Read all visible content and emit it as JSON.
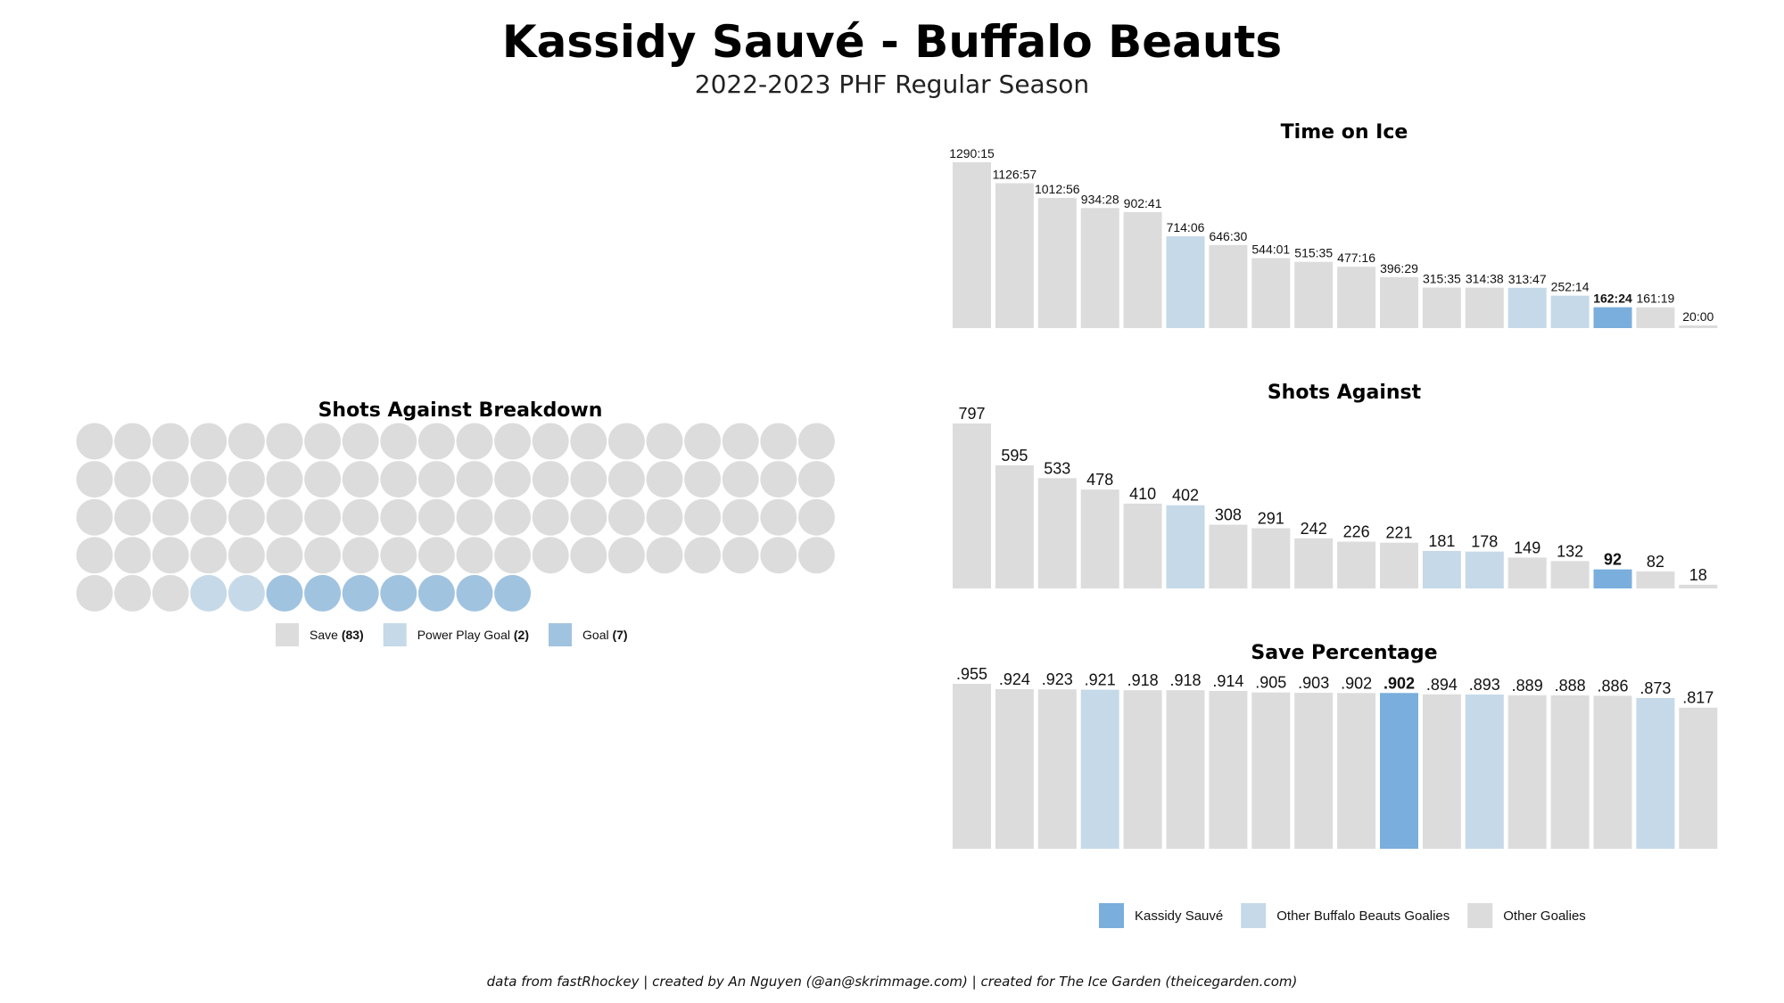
{
  "header": {
    "title": "Kassidy Sauvé - Buffalo Beauts",
    "subtitle": "2022-2023 PHF Regular Season"
  },
  "footer": {
    "text": "data from fastRhockey | created by An Nguyen (@an@skrimmage.com) | created for The Ice Garden (theicegarden.com)"
  },
  "colors": {
    "highlight": "#7aaedc",
    "team": "#c6d9e8",
    "other": "#dcdcdc",
    "goal": "#a0c3e0",
    "pp_goal": "#c6d9e8",
    "save": "#dcdcdc"
  },
  "chart_data": [
    {
      "type": "waffle",
      "title": "Shots Against Breakdown",
      "columns": 20,
      "categories": [
        {
          "key": "save",
          "label": "Save",
          "count": "83",
          "value": 83
        },
        {
          "key": "pp_goal",
          "label": "Power Play  Goal",
          "count": "2",
          "value": 2
        },
        {
          "key": "goal",
          "label": "Goal",
          "count": "7",
          "value": 7
        }
      ]
    },
    {
      "type": "bar",
      "title": "Time on Ice",
      "categories": [
        {
          "label": "1290:15",
          "value": 1290.25,
          "group": "other"
        },
        {
          "label": "1126:57",
          "value": 1126.95,
          "group": "other"
        },
        {
          "label": "1012:56",
          "value": 1012.93,
          "group": "other"
        },
        {
          "label": "934:28",
          "value": 934.47,
          "group": "other"
        },
        {
          "label": "902:41",
          "value": 902.68,
          "group": "other"
        },
        {
          "label": "714:06",
          "value": 714.1,
          "group": "team"
        },
        {
          "label": "646:30",
          "value": 646.5,
          "group": "other"
        },
        {
          "label": "544:01",
          "value": 544.02,
          "group": "other"
        },
        {
          "label": "515:35",
          "value": 515.58,
          "group": "other"
        },
        {
          "label": "477:16",
          "value": 477.27,
          "group": "other"
        },
        {
          "label": "396:29",
          "value": 396.48,
          "group": "other"
        },
        {
          "label": "315:35",
          "value": 315.58,
          "group": "other"
        },
        {
          "label": "314:38",
          "value": 314.63,
          "group": "other"
        },
        {
          "label": "313:47",
          "value": 313.78,
          "group": "team"
        },
        {
          "label": "252:14",
          "value": 252.23,
          "group": "team"
        },
        {
          "label": "162:24",
          "value": 162.4,
          "group": "highlight"
        },
        {
          "label": "161:19",
          "value": 161.32,
          "group": "other"
        },
        {
          "label": "20:00",
          "value": 20.0,
          "group": "other"
        }
      ],
      "ylim": [
        0,
        1290.25
      ]
    },
    {
      "type": "bar",
      "title": "Shots Against",
      "categories": [
        {
          "label": "797",
          "value": 797,
          "group": "other"
        },
        {
          "label": "595",
          "value": 595,
          "group": "other"
        },
        {
          "label": "533",
          "value": 533,
          "group": "other"
        },
        {
          "label": "478",
          "value": 478,
          "group": "other"
        },
        {
          "label": "410",
          "value": 410,
          "group": "other"
        },
        {
          "label": "402",
          "value": 402,
          "group": "team"
        },
        {
          "label": "308",
          "value": 308,
          "group": "other"
        },
        {
          "label": "291",
          "value": 291,
          "group": "other"
        },
        {
          "label": "242",
          "value": 242,
          "group": "other"
        },
        {
          "label": "226",
          "value": 226,
          "group": "other"
        },
        {
          "label": "221",
          "value": 221,
          "group": "other"
        },
        {
          "label": "181",
          "value": 181,
          "group": "team"
        },
        {
          "label": "178",
          "value": 178,
          "group": "team"
        },
        {
          "label": "149",
          "value": 149,
          "group": "other"
        },
        {
          "label": "132",
          "value": 132,
          "group": "other"
        },
        {
          "label": "92",
          "value": 92,
          "group": "highlight"
        },
        {
          "label": "82",
          "value": 82,
          "group": "other"
        },
        {
          "label": "18",
          "value": 18,
          "group": "other"
        }
      ],
      "ylim": [
        0,
        797
      ]
    },
    {
      "type": "bar",
      "title": "Save Percentage",
      "categories": [
        {
          "label": ".955",
          "value": 0.955,
          "group": "other"
        },
        {
          "label": ".924",
          "value": 0.924,
          "group": "other"
        },
        {
          "label": ".923",
          "value": 0.923,
          "group": "other"
        },
        {
          "label": ".921",
          "value": 0.921,
          "group": "team"
        },
        {
          "label": ".918",
          "value": 0.918,
          "group": "other"
        },
        {
          "label": ".918",
          "value": 0.918,
          "group": "other"
        },
        {
          "label": ".914",
          "value": 0.914,
          "group": "other"
        },
        {
          "label": ".905",
          "value": 0.905,
          "group": "other"
        },
        {
          "label": ".903",
          "value": 0.903,
          "group": "other"
        },
        {
          "label": ".902",
          "value": 0.902,
          "group": "other"
        },
        {
          "label": ".902",
          "value": 0.902,
          "group": "highlight"
        },
        {
          "label": ".894",
          "value": 0.894,
          "group": "other"
        },
        {
          "label": ".893",
          "value": 0.893,
          "group": "team"
        },
        {
          "label": ".889",
          "value": 0.889,
          "group": "other"
        },
        {
          "label": ".888",
          "value": 0.888,
          "group": "other"
        },
        {
          "label": ".886",
          "value": 0.886,
          "group": "other"
        },
        {
          "label": ".873",
          "value": 0.873,
          "group": "team"
        },
        {
          "label": ".817",
          "value": 0.817,
          "group": "other"
        }
      ],
      "ylim": [
        0,
        0.955
      ]
    }
  ],
  "legend": [
    {
      "label": "Kassidy Sauvé",
      "group": "highlight"
    },
    {
      "label": "Other Buffalo Beauts Goalies",
      "group": "team"
    },
    {
      "label": "Other Goalies",
      "group": "other"
    }
  ]
}
